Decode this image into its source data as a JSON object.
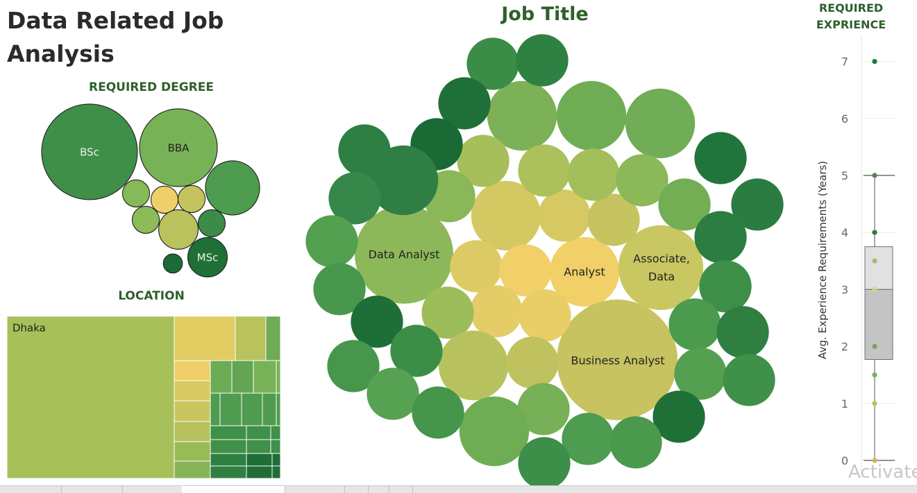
{
  "dashboard_title": "Data Related Job Analysis",
  "watermark": "Activate",
  "chart_data": [
    {
      "type": "bubble",
      "title": "REQUIRED DEGREE",
      "bubbles": [
        {
          "label": "BSc",
          "size": 100,
          "color": "#3f8f48"
        },
        {
          "label": "BBA",
          "size": 66,
          "color": "#77b257"
        },
        {
          "label": "",
          "size": 32,
          "color": "#4d9c4f"
        },
        {
          "label": "",
          "size": 8,
          "color": "#86b957"
        },
        {
          "label": "",
          "size": 8,
          "color": "#efcf68"
        },
        {
          "label": "",
          "size": 8,
          "color": "#c4c35e"
        },
        {
          "label": "",
          "size": 8,
          "color": "#8dbb57"
        },
        {
          "label": "",
          "size": 17,
          "color": "#b9c25c"
        },
        {
          "label": "",
          "size": 8,
          "color": "#3c8b46"
        },
        {
          "label": "",
          "size": 4,
          "color": "#1a6b35"
        },
        {
          "label": "MSc",
          "size": 17,
          "color": "#1f7037"
        }
      ]
    },
    {
      "type": "treemap",
      "title": "LOCATION",
      "cells": [
        {
          "label": "Dhaka",
          "color": "#a8c05a"
        },
        {
          "label": "",
          "color": "#e2cd62"
        },
        {
          "label": "",
          "color": "#b8c35e"
        },
        {
          "label": "",
          "color": "#6eab54"
        },
        {
          "label": "",
          "color": "#f0cf6a"
        },
        {
          "label": "",
          "color": "#d8ca62"
        },
        {
          "label": "",
          "color": "#c9c660"
        },
        {
          "label": "",
          "color": "#b6c15d"
        },
        {
          "label": "",
          "color": "#98bb58"
        },
        {
          "label": "",
          "color": "#86b557"
        },
        {
          "label": "",
          "color": "#6dab55"
        },
        {
          "label": "",
          "color": "#63a552"
        },
        {
          "label": "",
          "color": "#77b258"
        },
        {
          "label": "",
          "color": "#4f9b4f"
        },
        {
          "label": "",
          "color": "#3f9049"
        },
        {
          "label": "",
          "color": "#2f7f40"
        },
        {
          "label": "",
          "color": "#1e6e36"
        }
      ]
    },
    {
      "type": "bubble",
      "title": "Job Title",
      "bubbles": [
        {
          "label": "Data Analyst",
          "size": 100,
          "color": "#8db85a"
        },
        {
          "label": "Analyst",
          "size": 50,
          "color": "#f0d067"
        },
        {
          "label": "Associate, Data",
          "size": 74,
          "color": "#c9c762"
        },
        {
          "label": "Business Analyst",
          "size": 150,
          "color": "#c6c360"
        },
        {
          "label": "",
          "size": 50,
          "color": "#d4c862"
        },
        {
          "label": "",
          "size": 25,
          "color": "#d6c964"
        },
        {
          "label": "",
          "size": 25,
          "color": "#c5c460"
        },
        {
          "label": "",
          "size": 25,
          "color": "#dccb64"
        },
        {
          "label": "",
          "size": 25,
          "color": "#f1d06a"
        },
        {
          "label": "",
          "size": 25,
          "color": "#e4cc66"
        },
        {
          "label": "",
          "size": 25,
          "color": "#e9ce67"
        },
        {
          "label": "",
          "size": 25,
          "color": "#9dbd5a"
        },
        {
          "label": "",
          "size": 50,
          "color": "#b7c25e"
        },
        {
          "label": "",
          "size": 25,
          "color": "#bfc25f"
        },
        {
          "label": "",
          "size": 50,
          "color": "#7db157"
        },
        {
          "label": "",
          "size": 50,
          "color": "#6fad55"
        },
        {
          "label": "",
          "size": 50,
          "color": "#70ad56"
        },
        {
          "label": "",
          "size": 25,
          "color": "#a6bf5b"
        },
        {
          "label": "",
          "size": 25,
          "color": "#acc05c"
        },
        {
          "label": "",
          "size": 25,
          "color": "#a3be5a"
        },
        {
          "label": "",
          "size": 25,
          "color": "#8bb858"
        },
        {
          "label": "",
          "size": 25,
          "color": "#8ab757"
        },
        {
          "label": "",
          "size": 25,
          "color": "#73ae55"
        },
        {
          "label": "",
          "size": 25,
          "color": "#77b056"
        },
        {
          "label": "",
          "size": 50,
          "color": "#6fad55"
        },
        {
          "label": "",
          "size": 25,
          "color": "#3b8c47"
        },
        {
          "label": "",
          "size": 25,
          "color": "#2f8043"
        },
        {
          "label": "",
          "size": 25,
          "color": "#1f7038"
        },
        {
          "label": "",
          "size": 25,
          "color": "#1b6a35"
        },
        {
          "label": "",
          "size": 25,
          "color": "#2e7f43"
        },
        {
          "label": "",
          "size": 50,
          "color": "#2f7e43"
        },
        {
          "label": "",
          "size": 25,
          "color": "#21743b"
        },
        {
          "label": "",
          "size": 25,
          "color": "#2b7c41"
        },
        {
          "label": "",
          "size": 25,
          "color": "#35874a"
        },
        {
          "label": "",
          "size": 25,
          "color": "#2c7d42"
        },
        {
          "label": "",
          "size": 25,
          "color": "#53a050"
        },
        {
          "label": "",
          "size": 25,
          "color": "#48974c"
        },
        {
          "label": "",
          "size": 25,
          "color": "#3e8f48"
        },
        {
          "label": "",
          "size": 25,
          "color": "#1e6f37"
        },
        {
          "label": "",
          "size": 25,
          "color": "#4c9a4e"
        },
        {
          "label": "",
          "size": 25,
          "color": "#3c8e47"
        },
        {
          "label": "",
          "size": 25,
          "color": "#2f7f41"
        },
        {
          "label": "",
          "size": 25,
          "color": "#46964c"
        },
        {
          "label": "",
          "size": 25,
          "color": "#55a050"
        },
        {
          "label": "",
          "size": 25,
          "color": "#3f9049"
        },
        {
          "label": "",
          "size": 25,
          "color": "#56a252"
        },
        {
          "label": "",
          "size": 25,
          "color": "#45954b"
        },
        {
          "label": "",
          "size": 25,
          "color": "#1f7037"
        },
        {
          "label": "",
          "size": 25,
          "color": "#4e9c4f"
        },
        {
          "label": "",
          "size": 25,
          "color": "#4a994d"
        },
        {
          "label": "",
          "size": 25,
          "color": "#3d8e48"
        },
        {
          "label": "",
          "size": 25,
          "color": "#2b7a40"
        },
        {
          "label": "",
          "size": 50,
          "color": "#6aab54"
        },
        {
          "label": "",
          "size": 25,
          "color": "#63a853"
        },
        {
          "label": "",
          "size": 25,
          "color": "#54a150"
        },
        {
          "label": "",
          "size": 25,
          "color": "#38894a"
        }
      ]
    },
    {
      "type": "box_plot",
      "title": "REQUIRED EXPRIENCE",
      "ylabel": "Avg. Experience Requirements (Years)",
      "ylim": [
        0,
        7.5
      ],
      "y_ticks": [
        0,
        1,
        2,
        3,
        4,
        5,
        6,
        7
      ],
      "box": {
        "whisker_low": 0,
        "q1": 1.77,
        "median": 3.0,
        "q3": 3.75,
        "whisker_high": 5
      },
      "points": [
        {
          "y": 7,
          "color": "#1f7a3c"
        },
        {
          "y": 5,
          "color": "#4d8a45"
        },
        {
          "y": 4,
          "color": "#2d7d41"
        },
        {
          "y": 3.5,
          "color": "#9dbf6b"
        },
        {
          "y": 3,
          "color": "#d8cf86"
        },
        {
          "y": 2,
          "color": "#7aa25a"
        },
        {
          "y": 1.5,
          "color": "#78b25c"
        },
        {
          "y": 1,
          "color": "#bcbf5a"
        },
        {
          "y": 0,
          "color": "#d2b55a"
        }
      ]
    }
  ]
}
